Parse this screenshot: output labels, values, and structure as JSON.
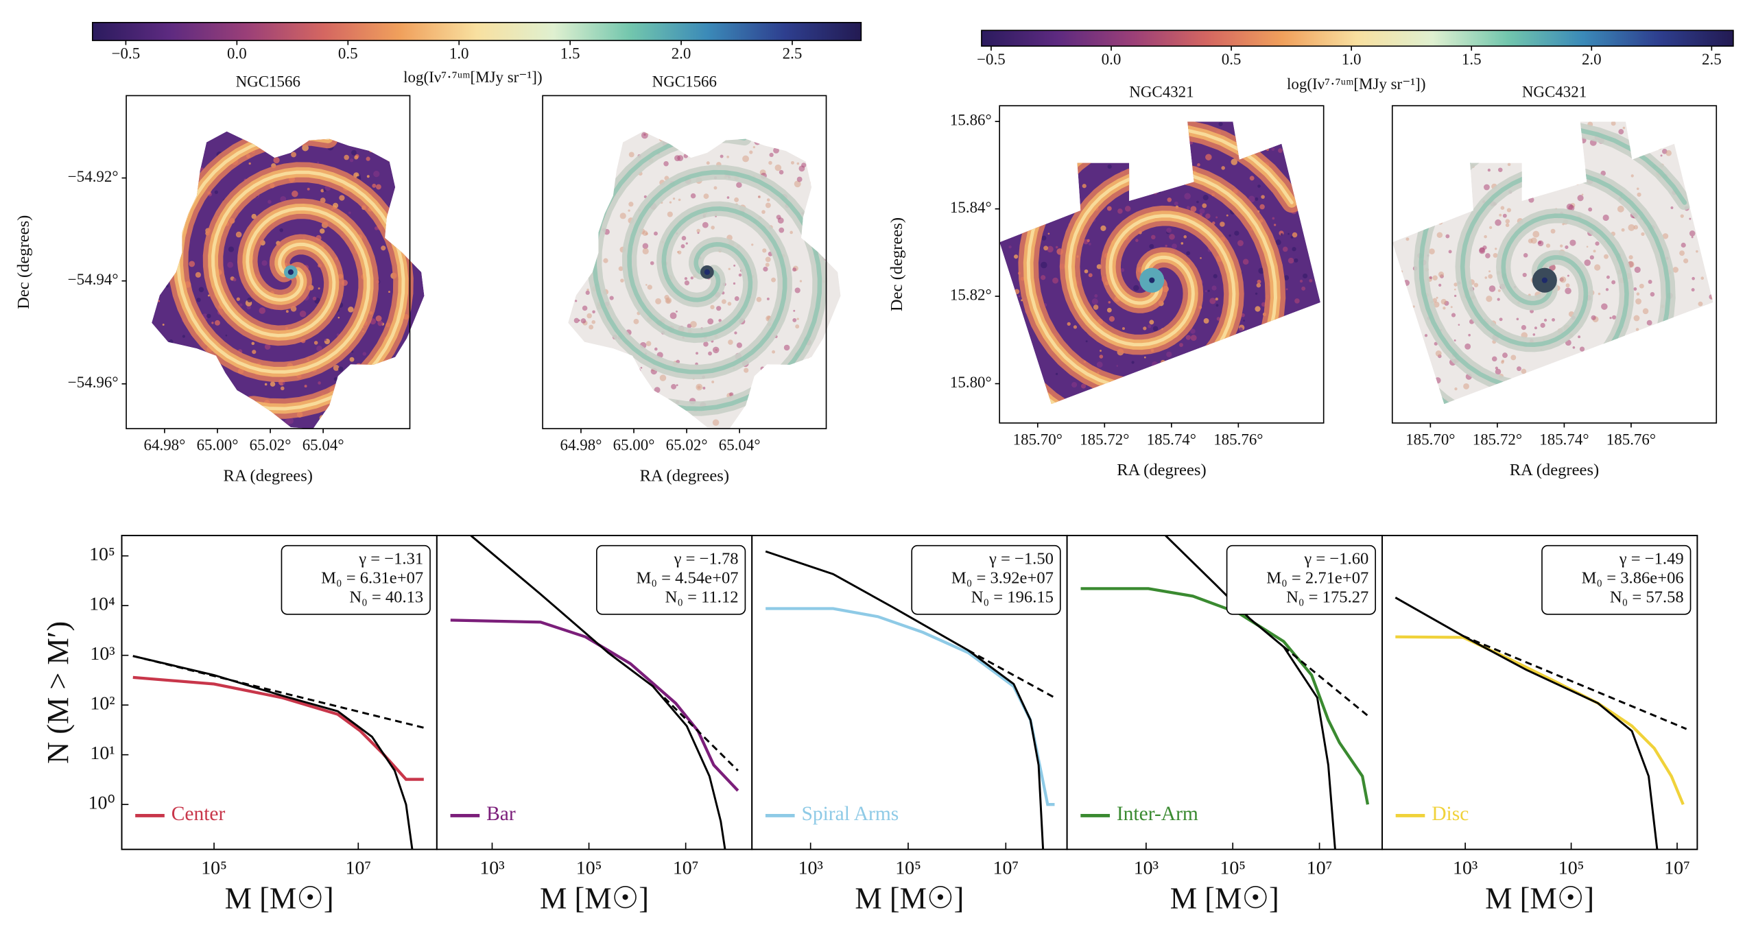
{
  "chart_data": [
    {
      "type": "colorbar",
      "label": "log(Iν⁷·⁷ᵘᵐ[MJy sr⁻¹])",
      "xlim": [
        -0.65,
        2.81
      ],
      "xticks": [
        {
          "value": -0.5,
          "label": "−0.5"
        },
        {
          "value": 0,
          "label": "0.0"
        },
        {
          "value": 0.5,
          "label": "0.5"
        },
        {
          "value": 1,
          "label": "1.0"
        },
        {
          "value": 1.5,
          "label": "1.5"
        },
        {
          "value": 2,
          "label": "2.0"
        },
        {
          "value": 2.5,
          "label": "2.5"
        }
      ],
      "colors": [
        "#2b1b5e",
        "#5d2a80",
        "#9a3f78",
        "#d46661",
        "#f0a05c",
        "#f8e0a0",
        "#dff0d0",
        "#72c6ad",
        "#3b8ab8",
        "#2e3f8f",
        "#231a52"
      ]
    },
    {
      "type": "colorbar",
      "label": "log(Iν⁷·⁷ᵘᵐ[MJy sr⁻¹])",
      "xlim": [
        -0.54,
        2.59
      ],
      "xticks": [
        {
          "value": -0.5,
          "label": "−0.5"
        },
        {
          "value": 0,
          "label": "0.0"
        },
        {
          "value": 0.5,
          "label": "0.5"
        },
        {
          "value": 1,
          "label": "1.0"
        },
        {
          "value": 1.5,
          "label": "1.5"
        },
        {
          "value": 2,
          "label": "2.0"
        },
        {
          "value": 2.5,
          "label": "2.5"
        }
      ],
      "colors": [
        "#2b1b5e",
        "#5d2a80",
        "#9a3f78",
        "#d46661",
        "#f0a05c",
        "#f8e0a0",
        "#dff0d0",
        "#72c6ad",
        "#3b8ab8",
        "#2e3f8f",
        "#231a52"
      ]
    },
    {
      "type": "map",
      "title": "NGC1566",
      "xlabel": "RA (degrees)",
      "ylabel": "Dec (degrees)",
      "xlim": [
        64.9655,
        65.0728
      ],
      "ylim": [
        -54.9687,
        -54.904
      ],
      "xticks": [
        {
          "value": 64.98,
          "label": "64.98°"
        },
        {
          "value": 65.0,
          "label": "65.00°"
        },
        {
          "value": 65.02,
          "label": "65.02°"
        },
        {
          "value": 65.04,
          "label": "65.04°"
        }
      ],
      "yticks": [
        {
          "value": -54.92,
          "label": "−54.92°"
        },
        {
          "value": -54.94,
          "label": "−54.94°"
        },
        {
          "value": -54.96,
          "label": "−54.96°"
        }
      ]
    },
    {
      "type": "map",
      "title": "NGC1566",
      "xlabel": "RA (degrees)",
      "xlim": [
        64.9655,
        65.0728
      ],
      "xticks": [
        {
          "value": 64.98,
          "label": "64.98°"
        },
        {
          "value": 65.0,
          "label": "65.00°"
        },
        {
          "value": 65.02,
          "label": "65.02°"
        },
        {
          "value": 65.04,
          "label": "65.04°"
        }
      ]
    },
    {
      "type": "map",
      "title": "NGC4321",
      "xlabel": "RA (degrees)",
      "ylabel": "Dec (degrees)",
      "xlim": [
        185.6886,
        185.7855
      ],
      "ylim": [
        15.791,
        15.8636
      ],
      "xticks": [
        {
          "value": 185.7,
          "label": "185.70°"
        },
        {
          "value": 185.72,
          "label": "185.72°"
        },
        {
          "value": 185.74,
          "label": "185.74°"
        },
        {
          "value": 185.76,
          "label": "185.76°"
        }
      ],
      "yticks": [
        {
          "value": 15.86,
          "label": "15.86°"
        },
        {
          "value": 15.84,
          "label": "15.84°"
        },
        {
          "value": 15.82,
          "label": "15.82°"
        },
        {
          "value": 15.8,
          "label": "15.80°"
        }
      ]
    },
    {
      "type": "map",
      "title": "NGC4321",
      "xlabel": "RA (degrees)",
      "xlim": [
        185.6886,
        185.7855
      ],
      "xticks": [
        {
          "value": 185.7,
          "label": "185.70°"
        },
        {
          "value": 185.72,
          "label": "185.72°"
        },
        {
          "value": 185.74,
          "label": "185.74°"
        },
        {
          "value": 185.76,
          "label": "185.76°"
        }
      ]
    },
    {
      "type": "line",
      "xscale": "log",
      "yscale": "log",
      "xlabel": "M [M☉]",
      "ylabel": "N (M > M′)",
      "legend": "lower left",
      "xlim": [
        5250,
        123000000
      ],
      "ylim": [
        0.125,
        257000
      ],
      "xticks": [
        {
          "value": 100000,
          "label": "10⁵"
        },
        {
          "value": 10000000,
          "label": "10⁷"
        }
      ],
      "yticks": [
        {
          "value": 1,
          "label": "10⁰"
        },
        {
          "value": 10,
          "label": "10¹"
        },
        {
          "value": 100,
          "label": "10²"
        },
        {
          "value": 1000,
          "label": "10³"
        },
        {
          "value": 10000,
          "label": "10⁴"
        },
        {
          "value": 100000,
          "label": "10⁵"
        }
      ],
      "annotations": [
        "γ = −1.31",
        "M₀ = 6.31e+07",
        "N₀ = 40.13"
      ],
      "series": [
        {
          "name": "Center",
          "color": "#c8364a",
          "x": [
            7500,
            100000,
            870000,
            5200000,
            10700000,
            22000000,
            46000000,
            81000000
          ],
          "values": [
            360,
            265,
            141,
            65,
            30,
            10.5,
            3.2,
            3.2
          ]
        },
        {
          "color": "#000000",
          "x": [
            7500,
            100000,
            870000,
            5200000,
            15500000,
            32000000,
            46000000,
            56000000
          ],
          "values": [
            970,
            400,
            155,
            75,
            23,
            4.8,
            1,
            0.126
          ]
        },
        {
          "color": "#000000",
          "dash": true,
          "x": [
            7500,
            81000000
          ],
          "values": [
            970,
            35
          ]
        }
      ]
    },
    {
      "type": "line",
      "xscale": "log",
      "yscale": "log",
      "xlabel": "M [M☉]",
      "legend": "lower left",
      "xlim": [
        72,
        234000000
      ],
      "ylim": [
        0.125,
        257000
      ],
      "xticks": [
        {
          "value": 1000,
          "label": "10³"
        },
        {
          "value": 100000,
          "label": "10⁵"
        },
        {
          "value": 10000000,
          "label": "10⁷"
        }
      ],
      "annotations": [
        "γ = −1.78",
        "M₀ = 4.54e+07",
        "N₀ = 11.12"
      ],
      "series": [
        {
          "name": "Bar",
          "color": "#7b1e7a",
          "x": [
            138,
            10000,
            85000,
            720000,
            6200000,
            18000000,
            38000000,
            120000000
          ],
          "values": [
            5100,
            4650,
            2350,
            680,
            109,
            30,
            6.2,
            1.9
          ]
        },
        {
          "color": "#000000",
          "x": [
            363,
            10000,
            250000,
            2100000,
            10500000,
            31000000,
            53000000,
            65000000
          ],
          "values": [
            257000,
            17000,
            1130,
            238,
            38,
            3.7,
            0.46,
            0.125
          ]
        },
        {
          "color": "#000000",
          "dash": true,
          "x": [
            3600000,
            120000000
          ],
          "values": [
            141,
            4.8
          ]
        }
      ]
    },
    {
      "type": "line",
      "xscale": "log",
      "yscale": "log",
      "xlabel": "M [M☉]",
      "legend": "lower left",
      "xlim": [
        63,
        180000000
      ],
      "ylim": [
        0.125,
        257000
      ],
      "xticks": [
        {
          "value": 1000,
          "label": "10³"
        },
        {
          "value": 100000,
          "label": "10⁵"
        },
        {
          "value": 10000000,
          "label": "10⁷"
        }
      ],
      "annotations": [
        "γ = −1.50",
        "M₀ = 3.92e+07",
        "N₀ = 196.15"
      ],
      "series": [
        {
          "name": "Spiral Arms",
          "color": "#8ecae6",
          "x": [
            120,
            2900,
            24000,
            200000,
            1700000,
            14500000,
            32000000,
            55000000,
            72000000,
            100000000
          ],
          "values": [
            8700,
            8700,
            6000,
            2900,
            1130,
            238,
            50,
            3.7,
            1,
            1
          ]
        },
        {
          "color": "#000000",
          "x": [
            120,
            2900,
            50000,
            1700000,
            14500000,
            32000000,
            47000000,
            58000000
          ],
          "values": [
            123000,
            43000,
            9100,
            1260,
            265,
            50,
            6.2,
            0.125
          ]
        },
        {
          "color": "#000000",
          "dash": true,
          "x": [
            1700000,
            100000000
          ],
          "values": [
            1260,
            141
          ]
        }
      ]
    },
    {
      "type": "line",
      "xscale": "log",
      "yscale": "log",
      "xlabel": "M [M☉]",
      "legend": "lower left",
      "xlim": [
        15,
        280000000
      ],
      "ylim": [
        0.125,
        257000
      ],
      "xticks": [
        {
          "value": 1000,
          "label": "10³"
        },
        {
          "value": 100000,
          "label": "10⁵"
        },
        {
          "value": 10000000,
          "label": "10⁷"
        }
      ],
      "annotations": [
        "γ = −1.60",
        "M₀ = 2.71e+07",
        "N₀ = 175.27"
      ],
      "series": [
        {
          "name": "Inter-Arm",
          "color": "#3a8a30",
          "x": [
            31,
            1130,
            12000,
            135000,
            1500000,
            6600000,
            16000000,
            29000000,
            98000000,
            130000000
          ],
          "values": [
            22000,
            22000,
            15500,
            7100,
            1900,
            400,
            50,
            17.5,
            3.7,
            1
          ]
        },
        {
          "color": "#000000",
          "x": [
            2800,
            41000,
            250000,
            1500000,
            8900000,
            16000000,
            23000000
          ],
          "values": [
            257000,
            26000,
            5400,
            1480,
            141,
            6.2,
            0.125
          ]
        },
        {
          "color": "#000000",
          "dash": true,
          "x": [
            1500000,
            140000000
          ],
          "values": [
            1480,
            58
          ]
        }
      ]
    },
    {
      "type": "line",
      "xscale": "log",
      "yscale": "log",
      "xlabel": "M [M☉]",
      "legend": "lower left",
      "xlim": [
        27,
        24000000
      ],
      "ylim": [
        0.125,
        257000
      ],
      "xticks": [
        {
          "value": 1000,
          "label": "10³"
        },
        {
          "value": 100000,
          "label": "10⁵"
        },
        {
          "value": 10000000,
          "label": "10⁷"
        }
      ],
      "annotations": [
        "γ = −1.49",
        "M₀ = 3.86e+06",
        "N₀ = 57.58"
      ],
      "series": [
        {
          "name": "Disc",
          "color": "#f0d23a",
          "x": [
            48,
            910,
            6400,
            46000,
            320000,
            1400000,
            3700000,
            7800000,
            13000000
          ],
          "values": [
            2350,
            2300,
            870,
            310,
            109,
            38,
            13.5,
            3.7,
            1
          ]
        },
        {
          "color": "#000000",
          "x": [
            48,
            910,
            14000,
            320000,
            1400000,
            2900000,
            4200000
          ],
          "values": [
            14500,
            2450,
            515,
            109,
            30,
            3.7,
            0.125
          ]
        },
        {
          "color": "#000000",
          "dash": true,
          "x": [
            910,
            15000000
          ],
          "values": [
            2450,
            33
          ]
        }
      ]
    }
  ]
}
